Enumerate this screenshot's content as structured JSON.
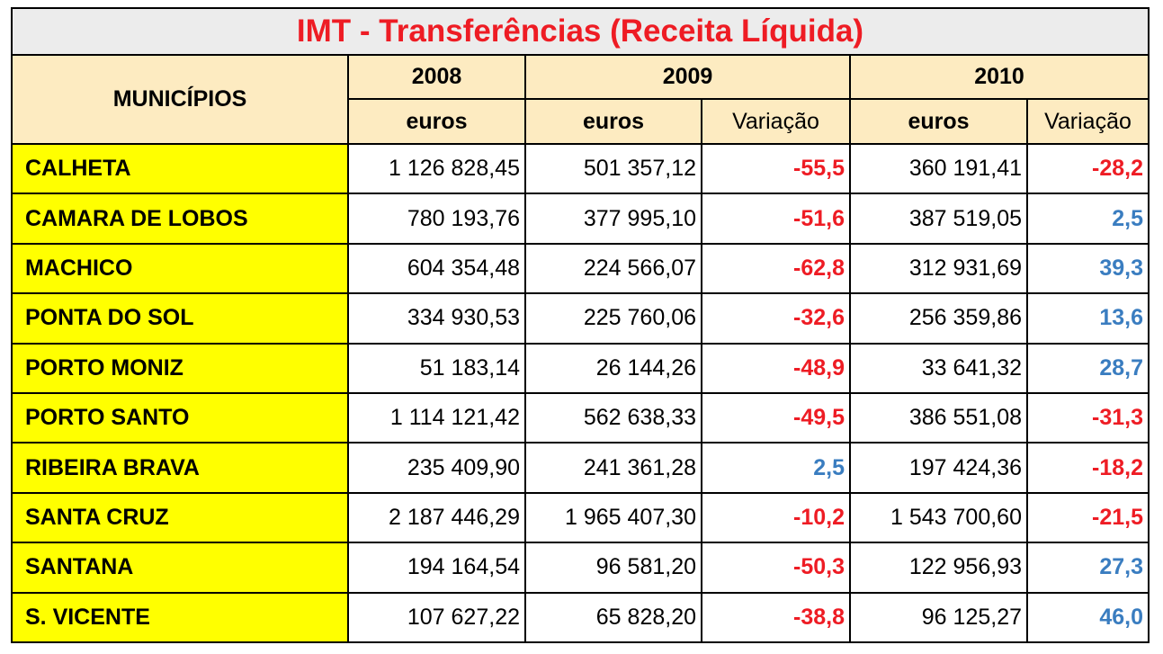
{
  "title": "IMT - Transferências (Receita Líquida)",
  "header": {
    "municipios": "MUNICÍPIOS",
    "years": [
      "2008",
      "2009",
      "2010"
    ],
    "euros": "euros",
    "variacao": "Variação"
  },
  "colors": {
    "title": "#ee1c24",
    "negative": "#ee1c24",
    "positive": "#3a7dc0",
    "municipio_bg": "#ffff00",
    "header_bg": "#fdebc1"
  },
  "rows": [
    {
      "municipio": "CALHETA",
      "e2008": "1 126 828,45",
      "e2009": "501 357,12",
      "v2009": "-55,5",
      "e2010": "360 191,41",
      "v2010": "-28,2"
    },
    {
      "municipio": "CAMARA DE LOBOS",
      "e2008": "780 193,76",
      "e2009": "377 995,10",
      "v2009": "-51,6",
      "e2010": "387 519,05",
      "v2010": "2,5"
    },
    {
      "municipio": "MACHICO",
      "e2008": "604 354,48",
      "e2009": "224 566,07",
      "v2009": "-62,8",
      "e2010": "312 931,69",
      "v2010": "39,3"
    },
    {
      "municipio": "PONTA DO SOL",
      "e2008": "334 930,53",
      "e2009": "225 760,06",
      "v2009": "-32,6",
      "e2010": "256 359,86",
      "v2010": "13,6"
    },
    {
      "municipio": "PORTO MONIZ",
      "e2008": "51 183,14",
      "e2009": "26 144,26",
      "v2009": "-48,9",
      "e2010": "33 641,32",
      "v2010": "28,7"
    },
    {
      "municipio": "PORTO SANTO",
      "e2008": "1 114 121,42",
      "e2009": "562 638,33",
      "v2009": "-49,5",
      "e2010": "386 551,08",
      "v2010": "-31,3"
    },
    {
      "municipio": "RIBEIRA BRAVA",
      "e2008": "235 409,90",
      "e2009": "241 361,28",
      "v2009": "2,5",
      "e2010": "197 424,36",
      "v2010": "-18,2"
    },
    {
      "municipio": "SANTA CRUZ",
      "e2008": "2 187 446,29",
      "e2009": "1 965 407,30",
      "v2009": "-10,2",
      "e2010": "1 543 700,60",
      "v2010": "-21,5"
    },
    {
      "municipio": "SANTANA",
      "e2008": "194 164,54",
      "e2009": "96 581,20",
      "v2009": "-50,3",
      "e2010": "122 956,93",
      "v2010": "27,3"
    },
    {
      "municipio": "S. VICENTE",
      "e2008": "107 627,22",
      "e2009": "65 828,20",
      "v2009": "-38,8",
      "e2010": "96 125,27",
      "v2010": "46,0"
    }
  ]
}
